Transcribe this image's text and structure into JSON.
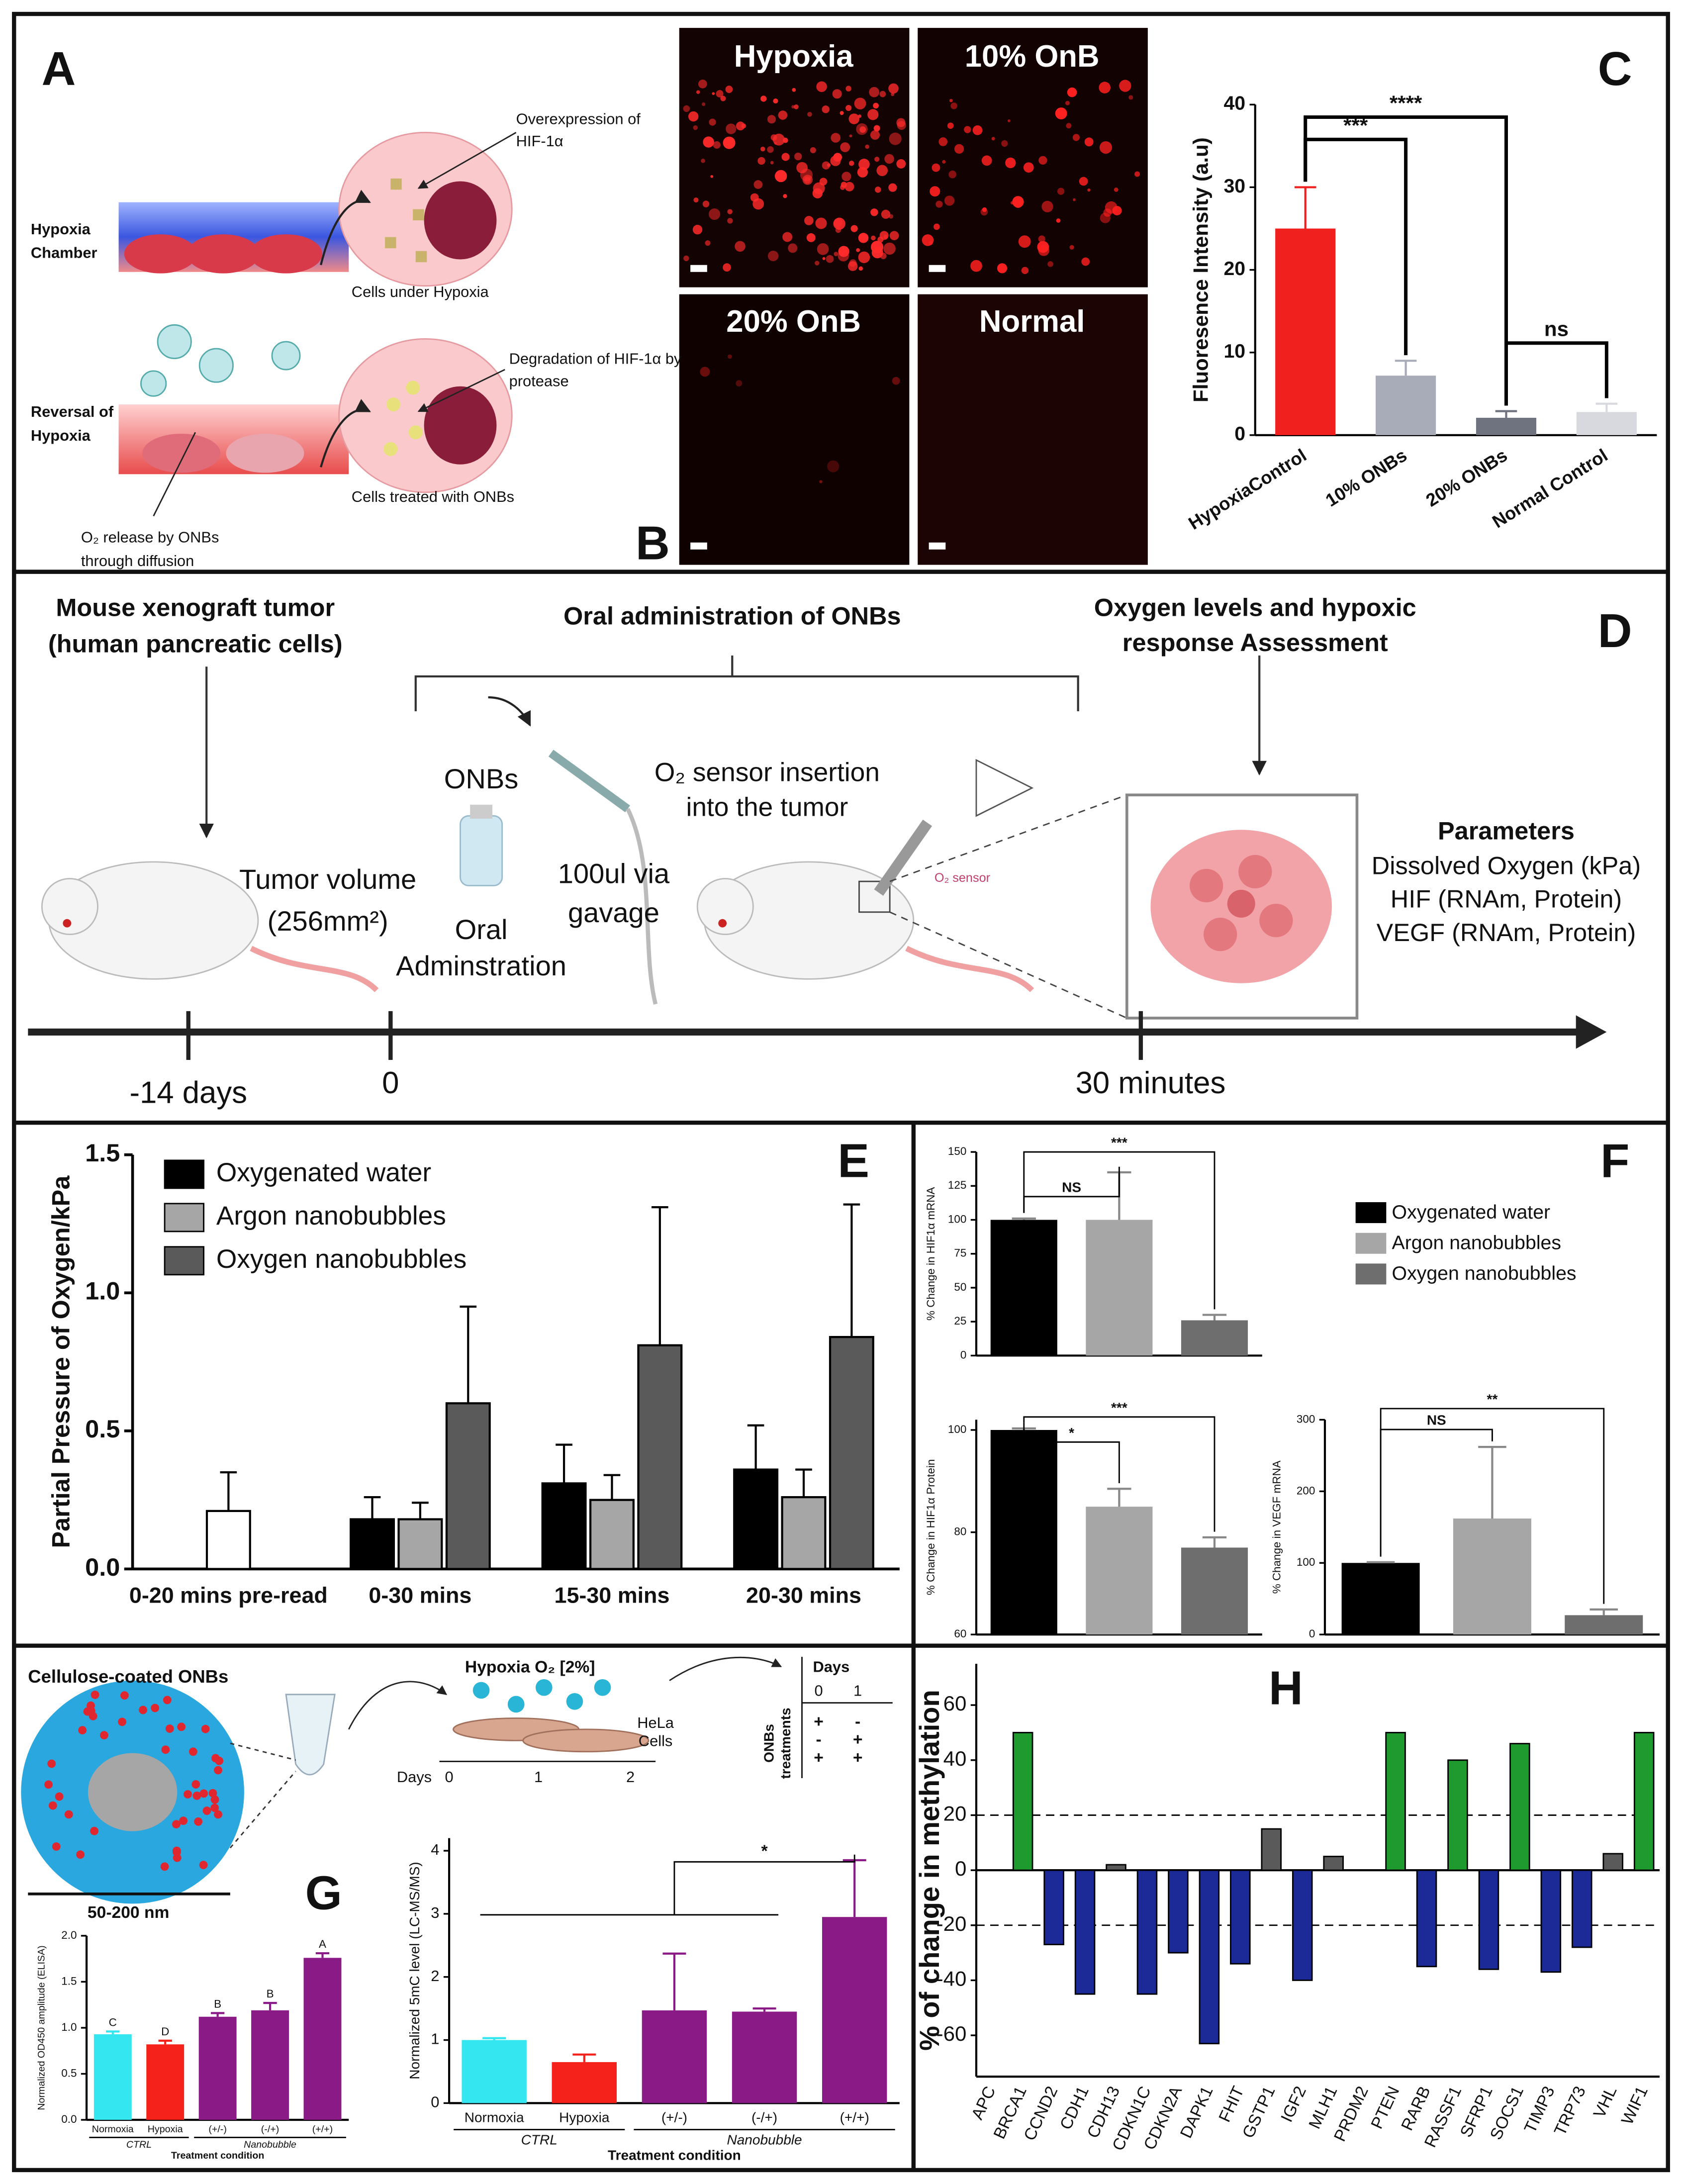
{
  "panel_labels": [
    "A",
    "B",
    "C",
    "D",
    "E",
    "F",
    "G",
    "H"
  ],
  "panel_a": {
    "overexpression": [
      "Overexpression of",
      "HIF-1α"
    ],
    "hypoxia_chamber": [
      "Hypoxia",
      "Chamber"
    ],
    "cells_hypoxia": "Cells under Hypoxia",
    "degradation": [
      "Degradation of HIF-1α by",
      "protease"
    ],
    "reversal": [
      "Reversal of",
      "Hypoxia"
    ],
    "cells_treated": "Cells treated with ONBs",
    "release": [
      "O₂ release by ONBs",
      "through diffusion"
    ]
  },
  "panel_b": {
    "titles": [
      "Hypoxia",
      "10% OnB",
      "20% OnB",
      "Normal"
    ]
  },
  "panel_d": {
    "xenograft": [
      "Mouse xenograft tumor",
      "(human pancreatic cells)"
    ],
    "oral": "Oral administration of ONBs",
    "assessment": [
      "Oxygen levels and hypoxic",
      "response Assessment"
    ],
    "onbs": "ONBs",
    "sensor": [
      "O₂ sensor insertion",
      "into the tumor"
    ],
    "tumor": [
      "Tumor volume",
      "(256mm²)"
    ],
    "adminstration": [
      "Oral",
      "Adminstration"
    ],
    "gavage": [
      "100ul  via",
      "gavage"
    ],
    "sensor_small": "O₂ sensor",
    "parameters_title": "Parameters",
    "parameters": [
      "Dissolved Oxygen (kPa)",
      "HIF  (RNAm, Protein)",
      "VEGF (RNAm, Protein)"
    ],
    "timeline": [
      "-14 days",
      "0",
      "30 minutes"
    ]
  },
  "panel_g": {
    "title": "Cellulose-coated ONBs",
    "size": "50-200 nm",
    "hypoxia": "Hypoxia O₂ [2%]",
    "hela": [
      "HeLa",
      "Cells"
    ],
    "days_label": "Days",
    "days": [
      "0",
      "1",
      "2"
    ],
    "table_header": "Days",
    "table_days": [
      "0",
      "1"
    ],
    "table_label": [
      "ONBs",
      "treatments"
    ],
    "table_rows": [
      [
        "+",
        "-"
      ],
      [
        "-",
        "+"
      ],
      [
        "+",
        "+"
      ]
    ]
  },
  "chart_data": [
    {
      "type": "bar",
      "y_label": "Fluoresence Intensity (a.u)",
      "categories": [
        "HypoxiaControl",
        "10% ONBs",
        "20% ONBs",
        "Normal Control"
      ],
      "values": [
        25,
        7.2,
        2.1,
        2.8
      ],
      "errors": [
        5,
        1.8,
        0.8,
        1
      ],
      "colors": [
        "#f0201e",
        "#a8abb8",
        "#6f7380",
        "#d8d9de"
      ],
      "ylim": [
        0,
        40
      ],
      "yticks": [
        0,
        10,
        20,
        30,
        40
      ],
      "annotations": [
        "***",
        "****",
        "ns"
      ]
    },
    {
      "type": "grouped-bar",
      "y_label": "Partial Pressure of Oxygen/kPa",
      "categories": [
        "0-20 mins pre-read",
        "0-30 mins",
        "15-30 mins",
        "20-30 mins"
      ],
      "series": [
        {
          "name": "Oxygenated water",
          "color": "#000000",
          "values": [
            null,
            0.18,
            0.31,
            0.36
          ],
          "errors": [
            null,
            0.08,
            0.14,
            0.16
          ]
        },
        {
          "name": "Argon nanobubbles",
          "color": "#a6a6a6",
          "values": [
            null,
            0.18,
            0.25,
            0.26
          ],
          "errors": [
            null,
            0.06,
            0.09,
            0.1
          ]
        },
        {
          "name": "Oxygen nanobubbles",
          "color": "#5a5a5a",
          "values": [
            null,
            0.6,
            0.81,
            0.84
          ],
          "errors": [
            null,
            0.35,
            0.5,
            0.48
          ]
        }
      ],
      "pre_read": {
        "value": 0.21,
        "error": 0.14,
        "color": "#ffffff"
      },
      "ylim": [
        0,
        1.5
      ],
      "yticks": [
        {
          "value": 0,
          "label": "0.0"
        },
        0.5,
        {
          "value": 1,
          "label": "1.0"
        },
        1.5
      ]
    },
    {
      "type": "bar",
      "y_label": "% Change in HIF1α mRNA",
      "values": [
        100,
        100,
        26
      ],
      "errors": [
        1,
        35,
        4
      ],
      "colors": [
        "#000000",
        "#a6a6a6",
        "#6e6e6e"
      ],
      "legend_labels": [
        "Oxygenated water",
        "Argon nanobubbles",
        "Oxygen nanobubbles"
      ],
      "ylim": [
        0,
        150
      ],
      "yticks": [
        0,
        25,
        50,
        75,
        100,
        125,
        150
      ],
      "annotations": [
        "NS",
        "***"
      ]
    },
    {
      "type": "bar",
      "y_label": "% Change in HIF1α Protein",
      "values": [
        100,
        85,
        77
      ],
      "errors": [
        0.3,
        3.5,
        2
      ],
      "colors": [
        "#000000",
        "#a6a6a6",
        "#6e6e6e"
      ],
      "ylim": [
        60,
        102
      ],
      "yticks": [
        60,
        80,
        100
      ],
      "annotations": [
        "*",
        "***"
      ]
    },
    {
      "type": "bar",
      "y_label": "% Change in VEGF mRNA",
      "values": [
        100,
        162,
        27
      ],
      "errors": [
        1,
        100,
        8
      ],
      "colors": [
        "#000000",
        "#a6a6a6",
        "#6e6e6e"
      ],
      "ylim": [
        0,
        300
      ],
      "yticks": [
        0,
        100,
        200,
        300
      ],
      "annotations": [
        "NS",
        "**"
      ]
    },
    {
      "type": "bar",
      "y_label": "Normalized OD450 amplitude (ELISA)",
      "x_label": "Treatment condition",
      "categories": [
        "Normoxia",
        "Hypoxia",
        "(+/-)",
        "(-/+)",
        "(+/+)"
      ],
      "group_labels": [
        "CTRL",
        "Nanobubble"
      ],
      "values": [
        0.93,
        0.82,
        1.12,
        1.19,
        1.76
      ],
      "errors": [
        0.03,
        0.04,
        0.04,
        0.08,
        0.05
      ],
      "colors": [
        "#33e6f0",
        "#f5221b",
        "#8a1a86",
        "#8a1a86",
        "#8a1a86"
      ],
      "ylim": [
        0,
        2
      ],
      "yticks": [
        {
          "value": 0,
          "label": "0.0"
        },
        0.5,
        {
          "value": 1,
          "label": "1.0"
        },
        1.5,
        {
          "value": 2,
          "label": "2.0"
        }
      ],
      "annotations": [
        "C",
        "D",
        "B",
        "B",
        "A"
      ]
    },
    {
      "type": "bar",
      "y_label": "Normalized 5mC level (LC-MS/MS)",
      "x_label": "Treatment condition",
      "categories": [
        "Normoxia",
        "Hypoxia",
        "(+/-)",
        "(-/+)",
        "(+/+)"
      ],
      "group_labels": [
        "CTRL",
        "Nanobubble"
      ],
      "values": [
        1,
        0.65,
        1.47,
        1.45,
        2.95
      ],
      "errors": [
        0.03,
        0.12,
        0.9,
        0.05,
        0.9
      ],
      "colors": [
        "#33e6f0",
        "#f5221b",
        "#8a1a86",
        "#8a1a86",
        "#8a1a86"
      ],
      "ylim": [
        0,
        4.2
      ],
      "yticks": [
        0,
        1,
        2,
        3,
        4
      ],
      "annotations": [
        "*"
      ]
    },
    {
      "type": "bar",
      "y_label": "% of change in methylation",
      "categories": [
        "APC",
        "BRCA1",
        "CCND2",
        "CDH1",
        "CDH13",
        "CDKN1C",
        "CDKN2A",
        "DAPK1",
        "FHIT",
        "GSTP1",
        "IGF2",
        "MLH1",
        "PRDM2",
        "PTEN",
        "RARB",
        "RASSF1",
        "SFRP1",
        "SOCS1",
        "TIMP3",
        "TRP73",
        "VHL",
        "WIF1"
      ],
      "values": [
        0,
        50,
        -27,
        -45,
        2,
        -45,
        -30,
        -63,
        -34,
        15,
        -40,
        5,
        0,
        50,
        -35,
        40,
        -36,
        46,
        -37,
        -28,
        6,
        50
      ],
      "colors": [
        "#1b2a96",
        "#1f9a2e",
        "#1b2a96",
        "#1b2a96",
        "#5a5a5a",
        "#1b2a96",
        "#1b2a96",
        "#1b2a96",
        "#1b2a96",
        "#5a5a5a",
        "#1b2a96",
        "#5a5a5a",
        "#1b2a96",
        "#1f9a2e",
        "#1b2a96",
        "#1f9a2e",
        "#1b2a96",
        "#1f9a2e",
        "#1b2a96",
        "#1b2a96",
        "#5a5a5a",
        "#1f9a2e"
      ],
      "ylim": [
        -75,
        75
      ],
      "yticks": [
        -60,
        -40,
        -20,
        0,
        20,
        40,
        60
      ],
      "reference_lines": [
        20,
        -20
      ]
    }
  ]
}
